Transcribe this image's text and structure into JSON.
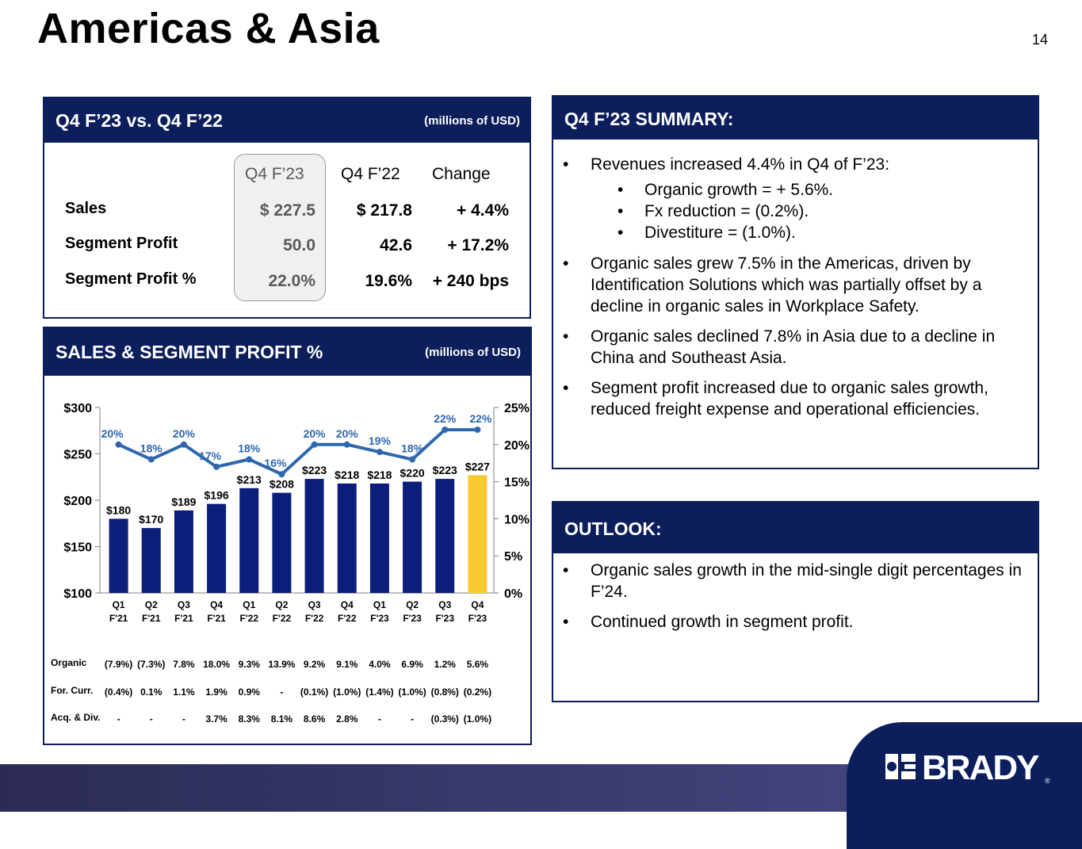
{
  "page": {
    "title": "Americas & Asia",
    "number": "14"
  },
  "comparison": {
    "title": "Q4 F’23 vs. Q4 F’22",
    "unit": "(millions of USD)",
    "columns": [
      "Q4 F’23",
      "Q4 F’22",
      "Change"
    ],
    "rows": [
      {
        "label": "Sales",
        "q4f23": "$ 227.5",
        "q4f22": "$ 217.8",
        "change": "+ 4.4%"
      },
      {
        "label": "Segment Profit",
        "q4f23": "50.0",
        "q4f22": "42.6",
        "change": "+ 17.2%"
      },
      {
        "label": "Segment Profit %",
        "q4f23": "22.0%",
        "q4f22": "19.6%",
        "change": "+ 240 bps"
      }
    ]
  },
  "chart_panel": {
    "title": "SALES & SEGMENT PROFIT %",
    "unit": "(millions of USD)"
  },
  "chart_data": {
    "type": "bar",
    "title": "SALES & SEGMENT PROFIT %",
    "categories_line1": [
      "Q1",
      "Q2",
      "Q3",
      "Q4",
      "Q1",
      "Q2",
      "Q3",
      "Q4",
      "Q1",
      "Q2",
      "Q3",
      "Q4"
    ],
    "categories_line2": [
      "F'21",
      "F'21",
      "F'21",
      "F'21",
      "F'22",
      "F'22",
      "F'22",
      "F'22",
      "F'23",
      "F'23",
      "F'23",
      "F'23"
    ],
    "series": [
      {
        "name": "Sales",
        "type": "bar",
        "axis": "left",
        "values": [
          180,
          170,
          189,
          196,
          213,
          208,
          223,
          218,
          218,
          220,
          223,
          227
        ],
        "labels": [
          "$180",
          "$170",
          "$189",
          "$196",
          "$213",
          "$208",
          "$223",
          "$218",
          "$218",
          "$220",
          "$223",
          "$227"
        ]
      },
      {
        "name": "Segment Profit %",
        "type": "line",
        "axis": "right",
        "values": [
          20,
          18,
          20,
          17,
          18,
          16,
          20,
          20,
          19,
          18,
          22,
          22
        ],
        "labels": [
          "20%",
          "18%",
          "20%",
          "17%",
          "18%",
          "16%",
          "20%",
          "20%",
          "19%",
          "18%",
          "22%",
          "22%"
        ]
      }
    ],
    "y_left": {
      "min": 100,
      "max": 300,
      "ticks": [
        "$100",
        "$150",
        "$200",
        "$250",
        "$300"
      ]
    },
    "y_right": {
      "min": 0,
      "max": 25,
      "ticks": [
        "0%",
        "5%",
        "10%",
        "15%",
        "20%",
        "25%"
      ]
    },
    "colors": {
      "bar": "#0c1e7a",
      "highlight_bar": "#f9c932",
      "line": "#2f67ad"
    },
    "highlight_index": 11
  },
  "growth_table": {
    "rows": [
      {
        "label": "Organic",
        "values": [
          "(7.9%)",
          "(7.3%)",
          "7.8%",
          "18.0%",
          "9.3%",
          "13.9%",
          "9.2%",
          "9.1%",
          "4.0%",
          "6.9%",
          "1.2%",
          "5.6%"
        ]
      },
      {
        "label": "For. Curr.",
        "values": [
          "(0.4%)",
          "0.1%",
          "1.1%",
          "1.9%",
          "0.9%",
          "-",
          "(0.1%)",
          "(1.0%)",
          "(1.4%)",
          "(1.0%)",
          "(0.8%)",
          "(0.2%)"
        ]
      },
      {
        "label": "Acq. & Div.",
        "values": [
          "-",
          "-",
          "-",
          "3.7%",
          "8.3%",
          "8.1%",
          "8.6%",
          "2.8%",
          "-",
          "-",
          "(0.3%)",
          "(1.0%)"
        ]
      }
    ]
  },
  "summary": {
    "title": "Q4 F’23 SUMMARY:",
    "bullet_glyph": "•",
    "items": [
      {
        "text": "Revenues increased 4.4% in Q4 of F’23:",
        "subs": [
          "Organic growth = + 5.6%.",
          "Fx reduction = (0.2%).",
          "Divestiture = (1.0%)."
        ]
      },
      {
        "text": "Organic sales grew 7.5% in the Americas, driven by Identification Solutions which was partially offset by a decline in organic sales in Workplace Safety."
      },
      {
        "text": "Organic sales declined 7.8% in Asia due to a decline in China and Southeast Asia."
      },
      {
        "text": "Segment profit increased due to organic sales growth, reduced freight expense and operational efficiencies."
      }
    ]
  },
  "outlook": {
    "title": "OUTLOOK:",
    "items": [
      "Organic sales growth in the mid-single digit percentages in F’24.",
      "Continued growth in segment profit."
    ]
  },
  "brand": {
    "name": "BRADY",
    "registered": "®",
    "colors": {
      "navy": "#0c1e5b",
      "footer": "#3a3a6e"
    }
  }
}
